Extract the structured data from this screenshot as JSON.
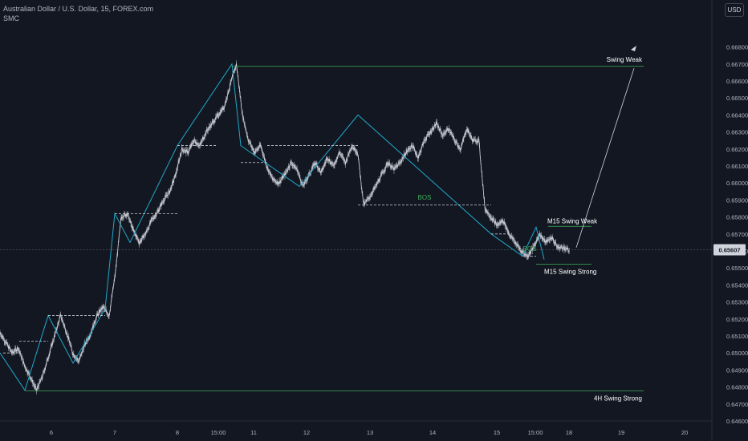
{
  "header": {
    "title": "Australian Dollar / U.S. Dollar, 15, FOREX.com",
    "indicator": "SMC"
  },
  "currency_button": "USD",
  "colors": {
    "background": "#131722",
    "candles": "#d1d4dc",
    "zigzag": "#1fa8c9",
    "swing_line": "#3fae5a",
    "dashed": "#c8ccd6",
    "bos_text": "#3fae5a",
    "price_badge": "#d1d4dc",
    "axis_text": "#b2b5be"
  },
  "chart_data": {
    "type": "line",
    "symbol": "AUDUSD",
    "timeframe": "15",
    "y_ticks": [
      "0.66800",
      "0.66700",
      "0.66600",
      "0.66500",
      "0.66400",
      "0.66300",
      "0.66200",
      "0.66100",
      "0.66000",
      "0.65900",
      "0.65800",
      "0.65700",
      "0.65600",
      "0.65500",
      "0.65400",
      "0.65300",
      "0.65200",
      "0.65100",
      "0.65000",
      "0.64900",
      "0.64800",
      "0.64700",
      "0.64600"
    ],
    "ylim": [
      0.646,
      0.668
    ],
    "x_ticks": [
      "6",
      "7",
      "8",
      "15:00",
      "11",
      "12",
      "13",
      "14",
      "15",
      "15:00",
      "18",
      "19",
      "20"
    ],
    "current_price": "0.65607",
    "price_path": [
      [
        "5",
        0.6512
      ],
      [
        "5",
        0.6506
      ],
      [
        "5",
        0.65
      ],
      [
        "5",
        0.6503
      ],
      [
        "5",
        0.6493
      ],
      [
        "5",
        0.6486
      ],
      [
        "5",
        0.6478
      ],
      [
        "5",
        0.6486
      ],
      [
        "5",
        0.6498
      ],
      [
        "5",
        0.651
      ],
      [
        "6",
        0.6522
      ],
      [
        "6",
        0.6512
      ],
      [
        "6",
        0.65
      ],
      [
        "6",
        0.6495
      ],
      [
        "6",
        0.6505
      ],
      [
        "6",
        0.6512
      ],
      [
        "6",
        0.6522
      ],
      [
        "6",
        0.6527
      ],
      [
        "6",
        0.6522
      ],
      [
        "6",
        0.6546
      ],
      [
        "7",
        0.658
      ],
      [
        "7",
        0.6582
      ],
      [
        "7",
        0.6572
      ],
      [
        "7",
        0.6565
      ],
      [
        "7",
        0.657
      ],
      [
        "7",
        0.6578
      ],
      [
        "7",
        0.6583
      ],
      [
        "7",
        0.659
      ],
      [
        "7",
        0.6595
      ],
      [
        "7",
        0.6605
      ],
      [
        "8",
        0.662
      ],
      [
        "8",
        0.6618
      ],
      [
        "8",
        0.6625
      ],
      [
        "8",
        0.6622
      ],
      [
        "8",
        0.663
      ],
      [
        "8",
        0.6635
      ],
      [
        "8",
        0.664
      ],
      [
        "8",
        0.6645
      ],
      [
        "8",
        0.6658
      ],
      [
        "15:00",
        0.667
      ],
      [
        "15:00",
        0.664
      ],
      [
        "15:00",
        0.6625
      ],
      [
        "11",
        0.6618
      ],
      [
        "11",
        0.6622
      ],
      [
        "11",
        0.661
      ],
      [
        "11",
        0.6602
      ],
      [
        "11",
        0.66
      ],
      [
        "11",
        0.6605
      ],
      [
        "11",
        0.6612
      ],
      [
        "11",
        0.6608
      ],
      [
        "12",
        0.6598
      ],
      [
        "12",
        0.6605
      ],
      [
        "12",
        0.6612
      ],
      [
        "12",
        0.6606
      ],
      [
        "12",
        0.6615
      ],
      [
        "12",
        0.661
      ],
      [
        "12",
        0.6618
      ],
      [
        "12",
        0.6612
      ],
      [
        "12",
        0.6622
      ],
      [
        "13",
        0.6618
      ],
      [
        "13",
        0.6587
      ],
      [
        "13",
        0.6592
      ],
      [
        "13",
        0.6598
      ],
      [
        "13",
        0.6605
      ],
      [
        "13",
        0.6612
      ],
      [
        "13",
        0.6608
      ],
      [
        "13",
        0.6612
      ],
      [
        "13",
        0.6618
      ],
      [
        "13",
        0.6622
      ],
      [
        "13",
        0.6615
      ],
      [
        "14",
        0.6625
      ],
      [
        "14",
        0.663
      ],
      [
        "14",
        0.6635
      ],
      [
        "14",
        0.6628
      ],
      [
        "14",
        0.6632
      ],
      [
        "14",
        0.6625
      ],
      [
        "14",
        0.662
      ],
      [
        "14",
        0.6632
      ],
      [
        "14",
        0.6625
      ],
      [
        "15",
        0.6625
      ],
      [
        "15",
        0.6585
      ],
      [
        "15",
        0.658
      ],
      [
        "15",
        0.6575
      ],
      [
        "15",
        0.6578
      ],
      [
        "15",
        0.657
      ],
      [
        "15",
        0.6565
      ],
      [
        "15",
        0.656
      ],
      [
        "15",
        0.6557
      ],
      [
        "15:00",
        0.6562
      ],
      [
        "15:00",
        0.657
      ],
      [
        "15:00",
        0.6565
      ],
      [
        "15:00",
        0.6568
      ],
      [
        "15:00",
        0.6562
      ],
      [
        "18",
        0.6562
      ],
      [
        "18",
        0.656
      ]
    ],
    "annotations": {
      "swing_weak": {
        "label": "Swing Weak",
        "price": 0.66686
      },
      "swing_strong_4h": {
        "label": "4H Swing Strong",
        "price": 0.64777
      },
      "m15_swing_weak": {
        "label": "M15 Swing Weak",
        "price": 0.65745
      },
      "m15_swing_strong": {
        "label": "M15 Swing Strong",
        "price": 0.65522
      },
      "bos_labels": [
        "BOS",
        "BOS"
      ],
      "zigzag_prices": [
        0.65,
        0.6478,
        0.6522,
        0.6494,
        0.6526,
        0.6582,
        0.6565,
        0.6622,
        0.667,
        0.6622,
        0.6598,
        0.664,
        0.657,
        0.6557,
        0.6574,
        0.6555
      ]
    }
  }
}
